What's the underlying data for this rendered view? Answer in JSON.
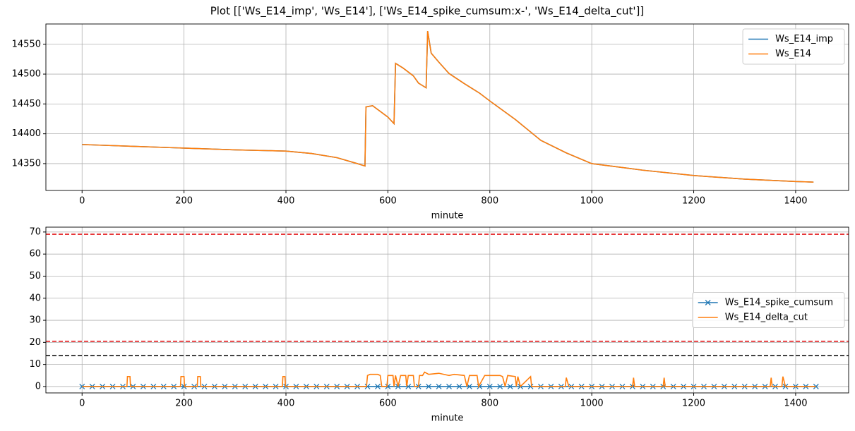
{
  "title": "Plot [['Ws_E14_imp', 'Ws_E14'], ['Ws_E14_spike_cumsum:x-', 'Ws_E14_delta_cut']]",
  "chart_data": [
    {
      "type": "line",
      "xlabel": "minute",
      "xlim": [
        -71,
        1504
      ],
      "ylim": [
        14305,
        14584
      ],
      "xticks": [
        0,
        200,
        400,
        600,
        800,
        1000,
        1200,
        1400
      ],
      "yticks": [
        14350,
        14400,
        14450,
        14500,
        14550
      ],
      "grid": true,
      "legend": "upper right",
      "series": [
        {
          "name": "Ws_E14_imp",
          "color": "#1f77b4",
          "x": [
            0,
            100,
            200,
            300,
            400,
            450,
            500,
            540,
            555,
            557,
            570,
            600,
            612,
            615,
            630,
            650,
            660,
            675,
            678,
            685,
            700,
            720,
            750,
            780,
            800,
            850,
            900,
            950,
            1000,
            1100,
            1200,
            1300,
            1400,
            1435
          ],
          "values": [
            14382,
            14379,
            14376,
            14373,
            14371,
            14367,
            14360,
            14350,
            14346,
            14445,
            14447,
            14428,
            14417,
            14518,
            14510,
            14497,
            14485,
            14477,
            14572,
            14535,
            14520,
            14501,
            14484,
            14468,
            14455,
            14424,
            14389,
            14368,
            14350,
            14339,
            14330,
            14324,
            14320,
            14319
          ]
        },
        {
          "name": "Ws_E14",
          "color": "#ff7f0e",
          "x": [
            0,
            100,
            200,
            300,
            400,
            450,
            500,
            540,
            555,
            557,
            570,
            600,
            612,
            615,
            630,
            650,
            660,
            675,
            678,
            685,
            700,
            720,
            750,
            780,
            800,
            850,
            900,
            950,
            1000,
            1100,
            1200,
            1300,
            1400,
            1435
          ],
          "values": [
            14382,
            14379,
            14376,
            14373,
            14371,
            14367,
            14360,
            14350,
            14346,
            14445,
            14447,
            14428,
            14417,
            14518,
            14510,
            14497,
            14485,
            14477,
            14572,
            14535,
            14520,
            14501,
            14484,
            14468,
            14455,
            14424,
            14389,
            14368,
            14350,
            14339,
            14330,
            14324,
            14320,
            14319
          ]
        }
      ]
    },
    {
      "type": "line",
      "xlabel": "minute",
      "xlim": [
        -71,
        1504
      ],
      "ylim": [
        -2.9,
        72.2
      ],
      "xticks": [
        0,
        200,
        400,
        600,
        800,
        1000,
        1200,
        1400
      ],
      "yticks": [
        0,
        10,
        20,
        30,
        40,
        50,
        60,
        70
      ],
      "grid": true,
      "legend": "center right",
      "hlines": [
        {
          "value": 69,
          "color": "#e31a1c"
        },
        {
          "value": 20.5,
          "color": "#e31a1c"
        },
        {
          "value": 14,
          "color": "#000000"
        }
      ],
      "series": [
        {
          "name": "Ws_E14_spike_cumsum",
          "color": "#1f77b4",
          "marker": "x",
          "x": [
            0,
            20,
            40,
            60,
            80,
            100,
            120,
            140,
            160,
            180,
            200,
            220,
            240,
            260,
            280,
            300,
            320,
            340,
            360,
            380,
            400,
            420,
            440,
            460,
            480,
            500,
            520,
            540,
            560,
            580,
            600,
            620,
            640,
            660,
            680,
            700,
            720,
            740,
            760,
            780,
            800,
            820,
            840,
            860,
            880,
            900,
            920,
            940,
            960,
            980,
            1000,
            1020,
            1040,
            1060,
            1080,
            1100,
            1120,
            1140,
            1160,
            1180,
            1200,
            1220,
            1240,
            1260,
            1280,
            1300,
            1320,
            1340,
            1360,
            1380,
            1400,
            1420,
            1440
          ],
          "values": [
            0,
            0,
            0,
            0,
            0,
            0,
            0,
            0,
            0,
            0,
            0,
            0,
            0,
            0,
            0,
            0,
            0,
            0,
            0,
            0,
            0,
            0,
            0,
            0,
            0,
            0,
            0,
            0,
            0,
            0,
            0,
            0,
            0,
            0,
            0,
            0,
            0,
            0,
            0,
            0,
            0,
            0,
            0,
            0,
            0,
            0,
            0,
            0,
            0,
            0,
            0,
            0,
            0,
            0,
            0,
            0,
            0,
            0,
            0,
            0,
            0,
            0,
            0,
            0,
            0,
            0,
            0,
            0,
            0,
            0,
            0,
            0,
            0
          ]
        },
        {
          "name": "Ws_E14_delta_cut",
          "color": "#ff7f0e",
          "x": [
            0,
            88,
            89,
            94,
            95,
            193,
            194,
            200,
            201,
            226,
            227,
            232,
            233,
            393,
            394,
            398,
            399,
            558,
            560,
            565,
            580,
            585,
            588,
            598,
            600,
            610,
            612,
            615,
            620,
            625,
            635,
            637,
            640,
            650,
            652,
            660,
            662,
            668,
            672,
            680,
            700,
            720,
            730,
            750,
            755,
            760,
            775,
            778,
            790,
            810,
            820,
            825,
            830,
            835,
            850,
            852,
            855,
            860,
            880,
            882,
            948,
            950,
            955,
            1080,
            1082,
            1084,
            1140,
            1142,
            1144,
            1350,
            1352,
            1354,
            1373,
            1375,
            1380,
            1440
          ],
          "values": [
            0,
            0,
            4.5,
            4.5,
            0,
            0,
            4.5,
            4.5,
            0,
            0,
            4.5,
            4.5,
            0,
            0,
            4.5,
            4.5,
            0,
            0,
            5,
            5.5,
            5.5,
            5,
            0,
            0,
            5,
            5,
            0,
            5,
            0,
            5,
            5,
            0,
            5,
            5,
            0,
            0,
            5,
            5,
            6.5,
            5.5,
            6,
            5,
            5.5,
            5,
            0,
            5,
            5,
            0,
            5,
            5,
            5,
            4.5,
            0,
            5,
            4.5,
            0,
            4.5,
            0,
            4.5,
            0,
            0,
            4,
            0,
            0,
            4,
            0,
            0,
            4,
            0,
            0,
            4,
            0,
            0,
            4.5,
            0,
            0
          ]
        }
      ]
    }
  ]
}
